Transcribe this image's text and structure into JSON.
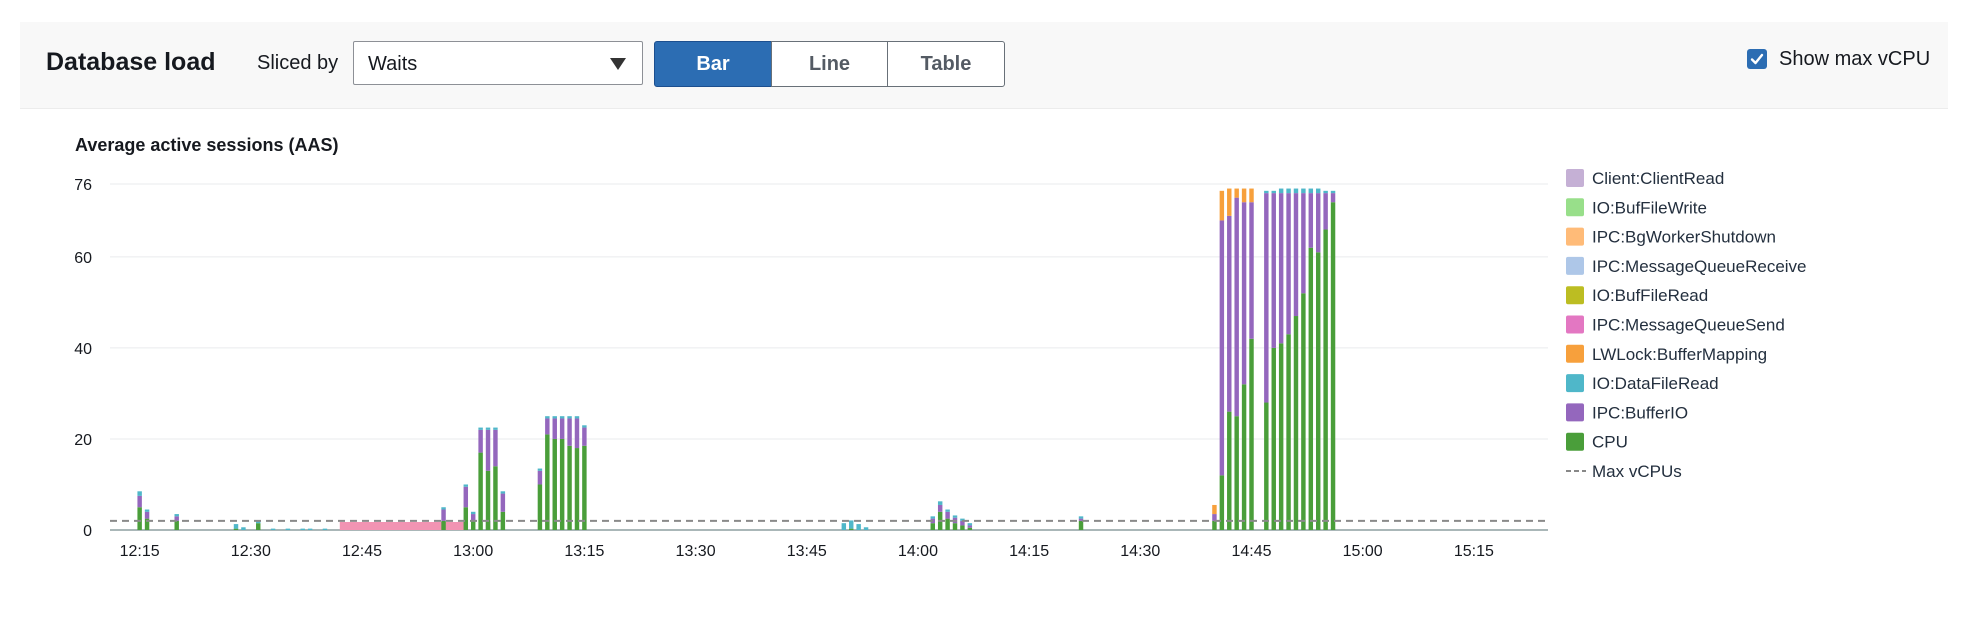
{
  "header": {
    "title": "Database load",
    "sliced_by_label": "Sliced by",
    "sliced_by_value": "Waits",
    "view_buttons": [
      "Bar",
      "Line",
      "Table"
    ],
    "active_view": "Bar",
    "show_max_vcpu_label": "Show max vCPU",
    "show_max_vcpu_checked": true
  },
  "chart_data": {
    "type": "bar",
    "stacked": true,
    "title": "Average active sessions (AAS)",
    "xlabel": "",
    "ylabel": "",
    "ylim": [
      0,
      76
    ],
    "y_ticks": [
      0,
      20,
      40,
      60,
      76
    ],
    "x_ticks": [
      "12:15",
      "12:30",
      "12:45",
      "13:00",
      "13:15",
      "13:30",
      "13:45",
      "14:00",
      "14:15",
      "14:30",
      "14:45",
      "15:00",
      "15:15"
    ],
    "x_range_minutes": [
      "12:11",
      "15:25"
    ],
    "bar_width_minutes": 0.6,
    "grid": "horizontal",
    "legend_position": "right",
    "max_vcpus": 2,
    "highlight_range": {
      "start": "12:42",
      "end": "12:59",
      "color": "#f294b3"
    },
    "legend": [
      {
        "name": "Client:ClientRead",
        "color": "#c5b0d5"
      },
      {
        "name": "IO:BufFileWrite",
        "color": "#98df8a"
      },
      {
        "name": "IPC:BgWorkerShutdown",
        "color": "#ffbb78"
      },
      {
        "name": "IPC:MessageQueueReceive",
        "color": "#aec7e8"
      },
      {
        "name": "IO:BufFileRead",
        "color": "#bcbd22"
      },
      {
        "name": "IPC:MessageQueueSend",
        "color": "#e377c2"
      },
      {
        "name": "LWLock:BufferMapping",
        "color": "#f7a03c"
      },
      {
        "name": "IO:DataFileRead",
        "color": "#4fb7c9"
      },
      {
        "name": "IPC:BufferIO",
        "color": "#9467bd"
      },
      {
        "name": "CPU",
        "color": "#4a9e3a"
      },
      {
        "name": "Max vCPUs",
        "color": "#888888",
        "style": "dashed"
      }
    ],
    "series_order": [
      "CPU",
      "IPC:BufferIO",
      "IO:DataFileRead",
      "LWLock:BufferMapping",
      "IPC:BgWorkerShutdown"
    ],
    "bars": [
      {
        "t": "12:15",
        "CPU": 5,
        "IPC:BufferIO": 2.5,
        "IO:DataFileRead": 1
      },
      {
        "t": "12:16",
        "CPU": 2.5,
        "IPC:BufferIO": 1.5,
        "IO:DataFileRead": 0.5
      },
      {
        "t": "12:20",
        "CPU": 2,
        "IPC:BufferIO": 1,
        "IO:DataFileRead": 0.5
      },
      {
        "t": "12:28",
        "CPU": 0.3,
        "IO:DataFileRead": 1
      },
      {
        "t": "12:29",
        "IO:DataFileRead": 0.6
      },
      {
        "t": "12:31",
        "CPU": 1.5,
        "IO:DataFileRead": 0.5
      },
      {
        "t": "12:33",
        "IO:DataFileRead": 0.3
      },
      {
        "t": "12:35",
        "IO:DataFileRead": 0.3
      },
      {
        "t": "12:37",
        "IO:DataFileRead": 0.3
      },
      {
        "t": "12:38",
        "IO:DataFileRead": 0.3
      },
      {
        "t": "12:40",
        "IO:DataFileRead": 0.3
      },
      {
        "t": "12:56",
        "CPU": 2,
        "IPC:BufferIO": 2.5,
        "IO:DataFileRead": 0.5
      },
      {
        "t": "12:59",
        "CPU": 5,
        "IPC:BufferIO": 4.5,
        "IO:DataFileRead": 0.5
      },
      {
        "t": "13:00",
        "CPU": 2,
        "IPC:BufferIO": 1.5,
        "IO:DataFileRead": 0.5
      },
      {
        "t": "12:62",
        "CPU": 1,
        "IPC:BufferIO": 1
      },
      {
        "t": "13:01",
        "CPU": 17,
        "IPC:BufferIO": 5,
        "IO:DataFileRead": 0.5
      },
      {
        "t": "13:02",
        "CPU": 13,
        "IPC:BufferIO": 9,
        "IO:DataFileRead": 0.5
      },
      {
        "t": "13:03",
        "CPU": 14,
        "IPC:BufferIO": 8,
        "IO:DataFileRead": 0.5
      },
      {
        "t": "13:04",
        "CPU": 4,
        "IPC:BufferIO": 4,
        "IO:DataFileRead": 0.5
      },
      {
        "t": "13:09",
        "CPU": 10,
        "IPC:BufferIO": 3,
        "IO:DataFileRead": 0.5
      },
      {
        "t": "13:10",
        "CPU": 21,
        "IPC:BufferIO": 3.5,
        "IO:DataFileRead": 0.5
      },
      {
        "t": "13:11",
        "CPU": 20,
        "IPC:BufferIO": 4.5,
        "IO:DataFileRead": 0.5
      },
      {
        "t": "13:12",
        "CPU": 20,
        "IPC:BufferIO": 4.5,
        "IO:DataFileRead": 0.5
      },
      {
        "t": "13:13",
        "CPU": 18.5,
        "IPC:BufferIO": 6,
        "IO:DataFileRead": 0.5
      },
      {
        "t": "13:14",
        "CPU": 18,
        "IPC:BufferIO": 6.5,
        "IO:DataFileRead": 0.5
      },
      {
        "t": "13:15",
        "CPU": 18.5,
        "IPC:BufferIO": 4,
        "IO:DataFileRead": 0.5
      },
      {
        "t": "13:50",
        "IO:DataFileRead": 1.5
      },
      {
        "t": "13:51",
        "CPU": 0.3,
        "IO:DataFileRead": 1.8
      },
      {
        "t": "13:52",
        "IO:DataFileRead": 1.3
      },
      {
        "t": "13:53",
        "IO:DataFileRead": 0.6
      },
      {
        "t": "14:02",
        "CPU": 1.5,
        "IPC:BufferIO": 1,
        "IO:DataFileRead": 0.5
      },
      {
        "t": "14:03",
        "CPU": 4,
        "IPC:BufferIO": 1.5,
        "IO:DataFileRead": 0.8
      },
      {
        "t": "14:04",
        "CPU": 2.5,
        "IPC:BufferIO": 1.5,
        "IO:DataFileRead": 0.5
      },
      {
        "t": "14:05",
        "CPU": 1.5,
        "IPC:BufferIO": 1.2,
        "IO:DataFileRead": 0.5
      },
      {
        "t": "14:06",
        "CPU": 1,
        "IPC:BufferIO": 1,
        "IO:DataFileRead": 0.5
      },
      {
        "t": "14:07",
        "CPU": 0.5,
        "IPC:BufferIO": 0.5,
        "IO:DataFileRead": 0.5
      },
      {
        "t": "14:22",
        "CPU": 2,
        "IPC:BufferIO": 0.5,
        "IO:DataFileRead": 0.5
      },
      {
        "t": "14:40",
        "CPU": 2,
        "IPC:BufferIO": 1.5,
        "LWLock:BufferMapping": 2
      },
      {
        "t": "14:41",
        "CPU": 12,
        "IPC:BufferIO": 56,
        "LWLock:BufferMapping": 6.5
      },
      {
        "t": "14:42",
        "CPU": 26,
        "IPC:BufferIO": 43,
        "LWLock:BufferMapping": 6
      },
      {
        "t": "14:43",
        "CPU": 25,
        "IPC:BufferIO": 48,
        "LWLock:BufferMapping": 2
      },
      {
        "t": "14:44",
        "CPU": 32,
        "IPC:BufferIO": 40,
        "LWLock:BufferMapping": 3
      },
      {
        "t": "14:45",
        "CPU": 42,
        "IPC:BufferIO": 30,
        "LWLock:BufferMapping": 3
      },
      {
        "t": "14:47",
        "CPU": 28,
        "IPC:BufferIO": 46,
        "IO:DataFileRead": 0.5
      },
      {
        "t": "14:48",
        "CPU": 40,
        "IPC:BufferIO": 34,
        "IO:DataFileRead": 0.5
      },
      {
        "t": "14:49",
        "CPU": 41,
        "IPC:BufferIO": 33,
        "IO:DataFileRead": 1
      },
      {
        "t": "14:50",
        "CPU": 43,
        "IPC:BufferIO": 31,
        "IO:DataFileRead": 1
      },
      {
        "t": "14:51",
        "CPU": 47,
        "IPC:BufferIO": 27,
        "IO:DataFileRead": 1
      },
      {
        "t": "14:52",
        "CPU": 52,
        "IPC:BufferIO": 22,
        "IO:DataFileRead": 1
      },
      {
        "t": "14:53",
        "CPU": 62,
        "IPC:BufferIO": 12,
        "IO:DataFileRead": 1
      },
      {
        "t": "14:54",
        "CPU": 61,
        "IPC:BufferIO": 13,
        "IO:DataFileRead": 1
      },
      {
        "t": "14:55",
        "CPU": 66,
        "IPC:BufferIO": 8,
        "IO:DataFileRead": 0.5
      },
      {
        "t": "14:56",
        "CPU": 72,
        "IPC:BufferIO": 2,
        "IO:DataFileRead": 0.5
      }
    ]
  }
}
